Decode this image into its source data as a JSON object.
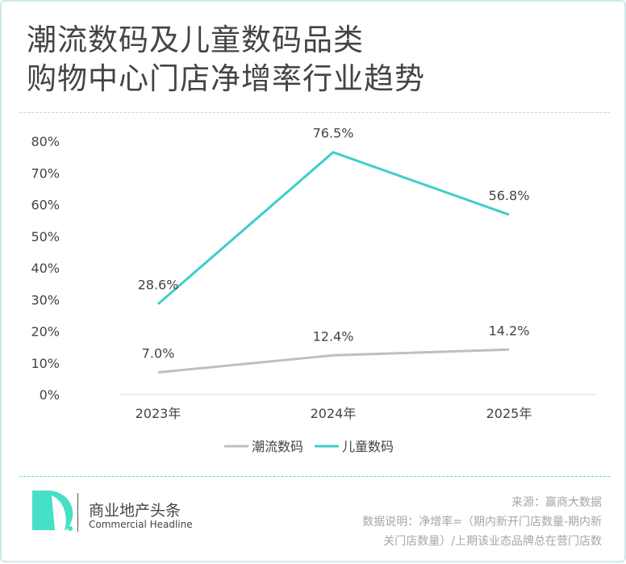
{
  "title_lines": [
    "潮流数码及儿童数码品类",
    "购物中心门店净增率行业趋势"
  ],
  "chart_data": {
    "type": "line",
    "categories": [
      "2023年",
      "2024年",
      "2025年"
    ],
    "series": [
      {
        "name": "潮流数码",
        "values": [
          7.0,
          12.4,
          14.2
        ],
        "labels": [
          "7.0%",
          "12.4%",
          "14.2%"
        ],
        "color": "#bfbfbf"
      },
      {
        "name": "儿童数码",
        "values": [
          28.6,
          76.5,
          56.8
        ],
        "labels": [
          "28.6%",
          "76.5%",
          "56.8%"
        ],
        "color": "#3ccfca"
      }
    ],
    "ylim": [
      0,
      80
    ],
    "yticks": [
      "0%",
      "10%",
      "20%",
      "30%",
      "40%",
      "50%",
      "60%",
      "70%",
      "80%"
    ],
    "grid": false,
    "legend": "bottom"
  },
  "footer": {
    "brand_logo_letter": "D.",
    "brand_name": "商业地产头条",
    "brand_en": "Commercial Headline",
    "source": "来源：赢商大数据",
    "note_line1": "数据说明：净增率=（期内新开门店数量-期内新",
    "note_line2": "关门店数量）/上期该业态品牌总在营门店数"
  },
  "colors": {
    "accent": "#3ccfca",
    "logo": "#45e0c6"
  }
}
